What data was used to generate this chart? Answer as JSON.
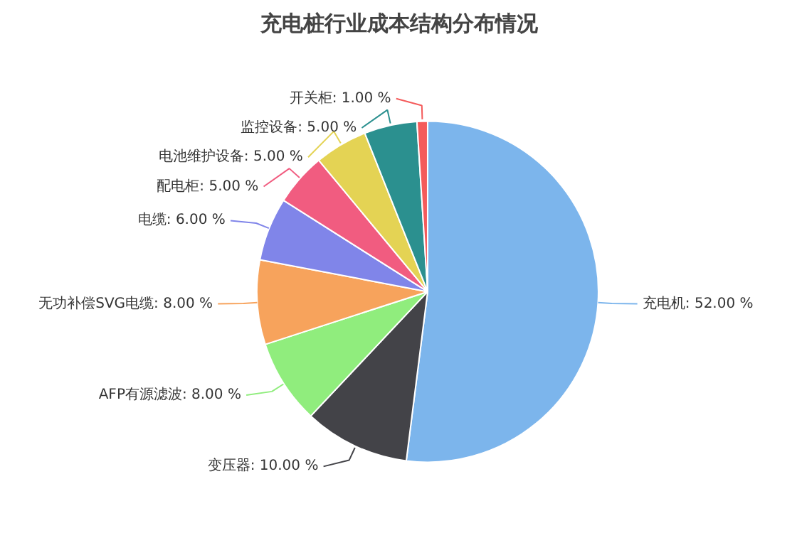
{
  "chart_data": {
    "type": "pie",
    "title": "充电桩行业成本结构分布情况",
    "categories": [
      "充电机",
      "变压器",
      "AFP有源滤波",
      "无功补偿SVG电缆",
      "电缆",
      "配电柜",
      "电池维护设备",
      "监控设备",
      "开关柜"
    ],
    "values": [
      52,
      10,
      8,
      8,
      6,
      5,
      5,
      5,
      1
    ],
    "colors": [
      "#7cb5ec",
      "#434348",
      "#90ed7d",
      "#f7a35c",
      "#8085e9",
      "#f15c80",
      "#e4d354",
      "#2b908f",
      "#f45b5b"
    ],
    "value_labels": [
      "52.00 %",
      "10.00 %",
      "8.00 %",
      "8.00 %",
      "6.00 %",
      "5.00 %",
      "5.00 %",
      "5.00 %",
      "1.00 %"
    ]
  }
}
